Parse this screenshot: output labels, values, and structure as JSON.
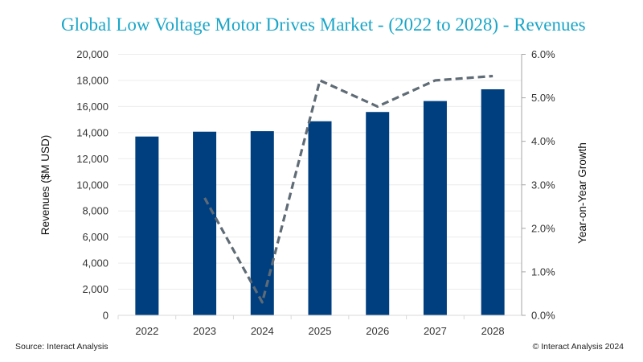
{
  "chart_data": {
    "type": "bar",
    "title": "Global Low Voltage Motor Drives Market - (2022 to 2028) - Revenues",
    "categories": [
      "2022",
      "2023",
      "2024",
      "2025",
      "2026",
      "2027",
      "2028"
    ],
    "series": [
      {
        "name": "Revenues ($M USD)",
        "type": "bar",
        "axis": "left",
        "color": "#003f7f",
        "values": [
          13700,
          14070,
          14110,
          14870,
          15580,
          16420,
          17320
        ]
      },
      {
        "name": "Year-on-Year Growth",
        "type": "line",
        "style": "dashed",
        "axis": "right",
        "color": "#5f6b75",
        "values": [
          null,
          2.7,
          0.3,
          5.4,
          4.8,
          5.4,
          5.5
        ]
      }
    ],
    "ylabel": "Revenues ($M USD)",
    "ylim": [
      0,
      20000
    ],
    "yticks": [
      "0",
      "2,000",
      "4,000",
      "6,000",
      "8,000",
      "10,000",
      "12,000",
      "14,000",
      "16,000",
      "18,000",
      "20,000"
    ],
    "y2label": "Year-on-Year Growth",
    "y2lim": [
      0,
      6
    ],
    "y2ticks": [
      "0.0%",
      "1.0%",
      "2.0%",
      "3.0%",
      "4.0%",
      "5.0%",
      "6.0%"
    ],
    "xlabel": "",
    "grid": true,
    "legend": "none"
  },
  "footer": {
    "source": "Source: Interact Analysis",
    "copyright": "© Interact Analysis 2024"
  },
  "colors": {
    "title": "#1aa6c8",
    "bar": "#003f7f",
    "line": "#5f6b75"
  }
}
